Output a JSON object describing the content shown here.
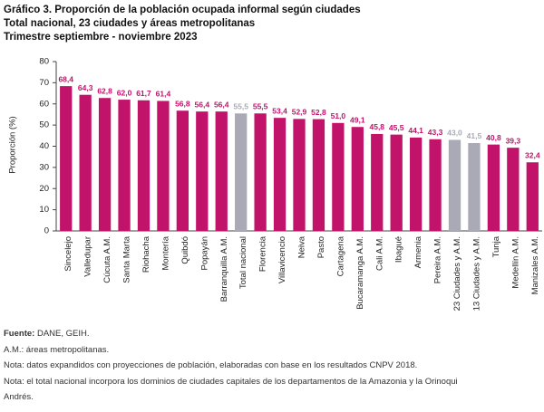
{
  "chart_data": {
    "type": "bar",
    "title": "Gráfico 3. Proporción de la población ocupada informal según ciudades",
    "subtitle_lines": [
      "Total nacional, 23 ciudades y áreas metropolitanas",
      "Trimestre septiembre - noviembre 2023"
    ],
    "y_label": "Proporción (%)",
    "categories": [
      "Sincelejo",
      "Valledupar",
      "Cúcuta A.M.",
      "Santa Marta",
      "Riohacha",
      "Montería",
      "Quibdó",
      "Popayán",
      "Barranquilla A.M.",
      "Total nacional",
      "Florencia",
      "Villavicencio",
      "Neiva",
      "Pasto",
      "Cartagena",
      "Bucaramanga A.M.",
      "Cali A.M.",
      "Ibagué",
      "Armenia",
      "Pereira A.M.",
      "23 Ciudades y A.M.",
      "13 Ciudades y A.M.",
      "Tunja",
      "Medellín A.M.",
      "Manizales A.M."
    ],
    "values": [
      68.4,
      64.3,
      62.8,
      62.0,
      61.7,
      61.4,
      56.8,
      56.4,
      56.4,
      55.5,
      55.5,
      53.4,
      52.9,
      52.8,
      51.0,
      49.1,
      45.8,
      45.5,
      44.1,
      43.3,
      43.0,
      41.5,
      40.8,
      39.3,
      32.4
    ],
    "value_labels": [
      "68,4",
      "64,3",
      "62,8",
      "62,0",
      "61,7",
      "61,4",
      "56,8",
      "56,4",
      "56,4",
      "55,5",
      "55,5",
      "53,4",
      "52,9",
      "52,8",
      "51,0",
      "49,1",
      "45,8",
      "45,5",
      "44,1",
      "43,3",
      "43,0",
      "41,5",
      "40,8",
      "39,3",
      "32,4"
    ],
    "colors": [
      "#c2136b",
      "#c2136b",
      "#c2136b",
      "#c2136b",
      "#c2136b",
      "#c2136b",
      "#c2136b",
      "#c2136b",
      "#c2136b",
      "#a9aab6",
      "#c2136b",
      "#c2136b",
      "#c2136b",
      "#c2136b",
      "#c2136b",
      "#c2136b",
      "#c2136b",
      "#c2136b",
      "#c2136b",
      "#c2136b",
      "#a9aab6",
      "#a9aab6",
      "#c2136b",
      "#c2136b",
      "#c2136b"
    ],
    "ylim": [
      0,
      80
    ],
    "yticks": [
      0,
      10,
      20,
      30,
      40,
      50,
      60,
      70,
      80
    ],
    "grid": false
  },
  "notes": {
    "source_label": "Fuente:",
    "source": "DANE, GEIH.",
    "lines": [
      "A.M.: áreas metropolitanas.",
      "Nota: datos expandidos con proyecciones de población, elaboradas con base en los resultados CNPV 2018.",
      "Nota: el total nacional incorpora los dominios de ciudades capitales de los departamentos de la Amazonia y la Orinoqui",
      "Andrés."
    ]
  }
}
